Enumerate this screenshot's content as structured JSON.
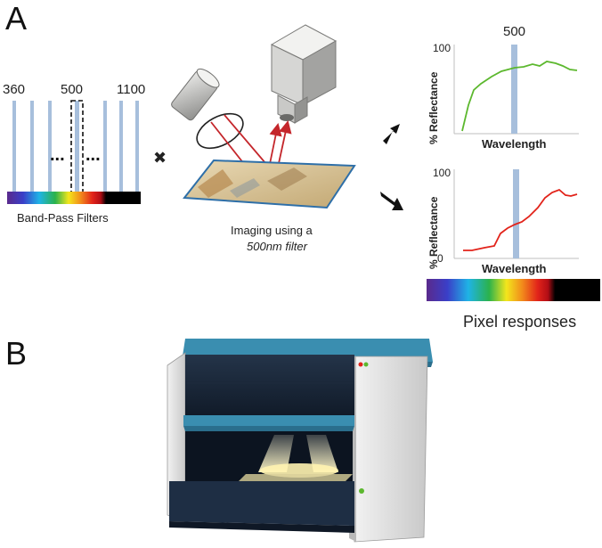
{
  "panels": {
    "a": "A",
    "b": "B"
  },
  "filters": {
    "wl_start": "360",
    "wl_mid": "500",
    "wl_end": "1100",
    "caption": "Band-Pass Filters",
    "dots": "..."
  },
  "multiply_symbol": "✖",
  "imaging": {
    "line1": "Imaging using a",
    "line2": "500nm filter"
  },
  "plot_top": {
    "y_max": "100",
    "marker": "500",
    "ylabel": "% Reflectance",
    "xlabel": "Wavelength",
    "color": "#5cb82e"
  },
  "plot_bottom": {
    "y_max": "100",
    "y_min": "0",
    "ylabel": "% Reflectance",
    "xlabel": "Wavelength",
    "color": "#e2231a"
  },
  "pixel_responses": "Pixel responses",
  "colors": {
    "band_blue": "#a7bfdc",
    "filter_blue": "#8ea8cc",
    "instrument_lid": "#3a8eb0"
  }
}
